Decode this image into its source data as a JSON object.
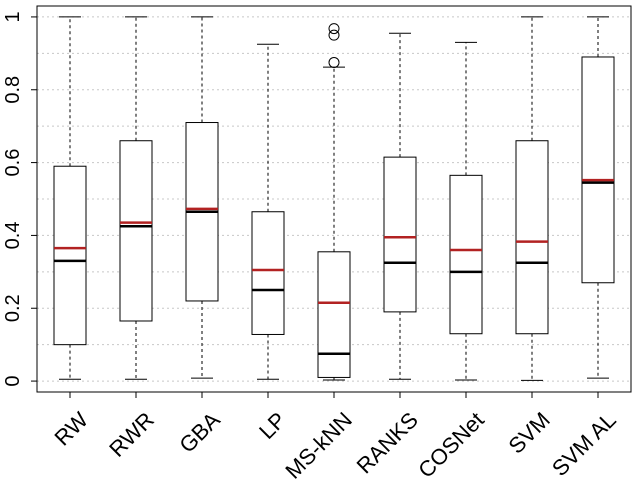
{
  "chart_data": {
    "type": "boxplot",
    "title": "",
    "xlabel": "",
    "ylabel": "",
    "ylim": [
      -0.03,
      1.03
    ],
    "y_ticks": [
      0,
      0.2,
      0.4,
      0.6,
      0.8,
      1
    ],
    "y_tick_labels": [
      "0",
      "0.2",
      "0.4",
      "0.6",
      "0.8",
      "1"
    ],
    "grid": true,
    "colors": {
      "median": "#000000",
      "mean": "#b22222",
      "box": "#000000",
      "grid": "#c8c8c8"
    },
    "categories": [
      "RW",
      "RWR",
      "GBA",
      "LP",
      "MS-kNN",
      "RANKS",
      "COSNet",
      "SVM",
      "SVM AL"
    ],
    "boxes": [
      {
        "name": "RW",
        "whisker_low": 0.005,
        "q1": 0.1,
        "median": 0.33,
        "mean": 0.365,
        "q3": 0.59,
        "whisker_high": 1.0,
        "outliers": []
      },
      {
        "name": "RWR",
        "whisker_low": 0.005,
        "q1": 0.165,
        "median": 0.425,
        "mean": 0.435,
        "q3": 0.66,
        "whisker_high": 1.0,
        "outliers": []
      },
      {
        "name": "GBA",
        "whisker_low": 0.008,
        "q1": 0.22,
        "median": 0.465,
        "mean": 0.473,
        "q3": 0.71,
        "whisker_high": 1.0,
        "outliers": []
      },
      {
        "name": "LP",
        "whisker_low": 0.005,
        "q1": 0.128,
        "median": 0.25,
        "mean": 0.305,
        "q3": 0.465,
        "whisker_high": 0.925,
        "outliers": []
      },
      {
        "name": "MS-kNN",
        "whisker_low": 0.003,
        "q1": 0.01,
        "median": 0.075,
        "mean": 0.215,
        "q3": 0.355,
        "whisker_high": 0.862,
        "outliers": [
          0.875,
          0.95,
          0.968
        ]
      },
      {
        "name": "RANKS",
        "whisker_low": 0.005,
        "q1": 0.19,
        "median": 0.325,
        "mean": 0.395,
        "q3": 0.615,
        "whisker_high": 0.955,
        "outliers": []
      },
      {
        "name": "COSNet",
        "whisker_low": 0.003,
        "q1": 0.13,
        "median": 0.3,
        "mean": 0.36,
        "q3": 0.565,
        "whisker_high": 0.93,
        "outliers": []
      },
      {
        "name": "SVM",
        "whisker_low": 0.002,
        "q1": 0.13,
        "median": 0.325,
        "mean": 0.383,
        "q3": 0.66,
        "whisker_high": 1.0,
        "outliers": []
      },
      {
        "name": "SVM AL",
        "whisker_low": 0.008,
        "q1": 0.27,
        "median": 0.545,
        "mean": 0.552,
        "q3": 0.89,
        "whisker_high": 1.0,
        "outliers": []
      }
    ]
  }
}
